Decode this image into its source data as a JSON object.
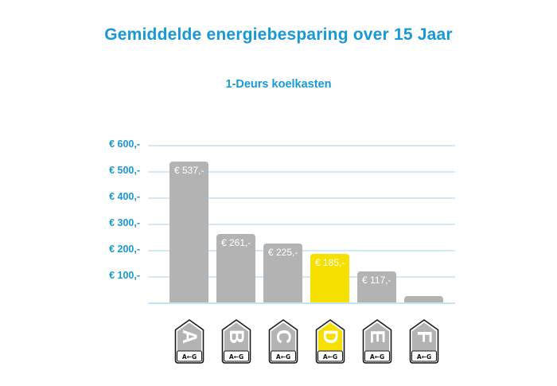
{
  "header": {
    "title": "Gemiddelde energiebesparing over 15 Jaar",
    "subtitle": "1-Deurs koelkasten"
  },
  "chart_data": {
    "type": "bar",
    "title": "Gemiddelde energiebesparing over 15 Jaar",
    "subtitle": "1-Deurs koelkasten",
    "categories": [
      "A",
      "B",
      "C",
      "D",
      "E",
      "F"
    ],
    "values": [
      537,
      261,
      225,
      185,
      117,
      25
    ],
    "bar_labels": [
      "€ 537,-",
      "€ 261,-",
      "€ 225,-",
      "€ 185,-",
      "€ 117,-",
      ""
    ],
    "highlight_category": "D",
    "y_ticks": [
      {
        "value": 600,
        "label": "€ 600,-"
      },
      {
        "value": 500,
        "label": "€ 500,-"
      },
      {
        "value": 400,
        "label": "€ 400,-"
      },
      {
        "value": 300,
        "label": "€ 300,-"
      },
      {
        "value": 200,
        "label": "€ 200,-"
      },
      {
        "value": 100,
        "label": "€ 100,-"
      }
    ],
    "ylim": [
      0,
      600
    ],
    "grid": true,
    "legend": "none",
    "xlabel": "",
    "ylabel": "",
    "x_axis_tags": {
      "style": "eu-energy-label-arrow",
      "letters": [
        "A",
        "B",
        "C",
        "D",
        "E",
        "F"
      ],
      "range_label": "A←G"
    },
    "colors": {
      "accent_blue": "#1899d6",
      "bar_default": "#b3b3b3",
      "bar_highlight": "#f5e000",
      "grid_line": "#d3e9f8",
      "grid_baseline": "#c2e2f5",
      "bar_label_text": "#ffffff",
      "tag_outline": "#1a1a1a",
      "tag_letter": "#ffffff"
    }
  }
}
